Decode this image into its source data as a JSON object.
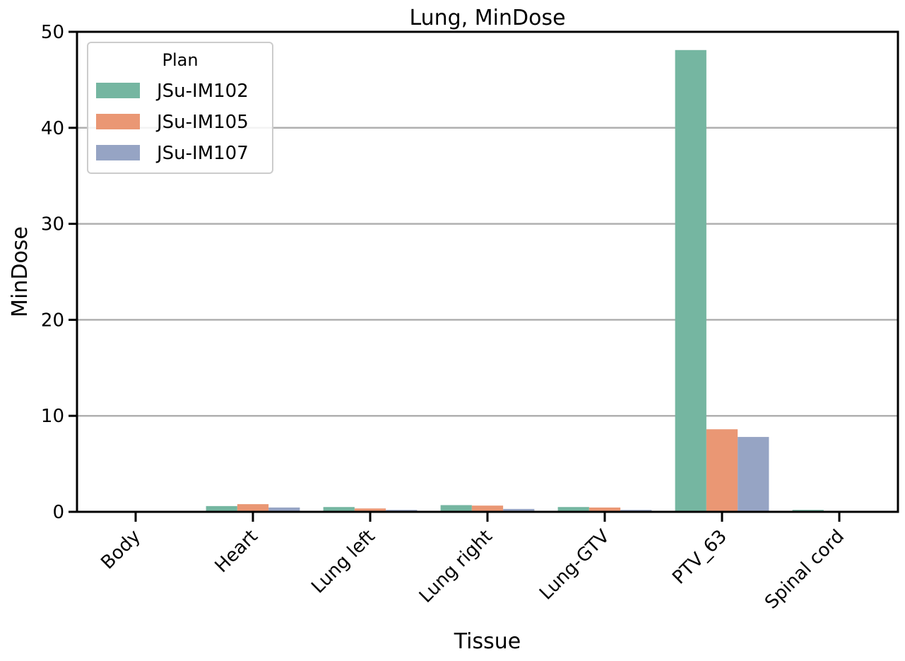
{
  "chart_data": {
    "type": "bar",
    "title": "Lung, MinDose",
    "xlabel": "Tissue",
    "ylabel": "MinDose",
    "ylim": [
      0,
      50
    ],
    "yticks": [
      0,
      10,
      20,
      30,
      40,
      50
    ],
    "grid": "horizontal",
    "legend": {
      "title": "Plan",
      "placement": "top-left"
    },
    "categories": [
      "Body",
      "Heart",
      "Lung left",
      "Lung right",
      "Lung-GTV",
      "PTV_63",
      "Spinal cord"
    ],
    "series": [
      {
        "name": "JSu-IM102",
        "color": "#75b6a1",
        "values": [
          0.0,
          0.6,
          0.5,
          0.7,
          0.5,
          48.1,
          0.2
        ]
      },
      {
        "name": "JSu-IM105",
        "color": "#ea9774",
        "values": [
          0.0,
          0.8,
          0.35,
          0.65,
          0.45,
          8.6,
          0.05
        ]
      },
      {
        "name": "JSu-IM107",
        "color": "#96a4c4",
        "values": [
          0.0,
          0.45,
          0.2,
          0.3,
          0.2,
          7.8,
          0.0
        ]
      }
    ]
  }
}
